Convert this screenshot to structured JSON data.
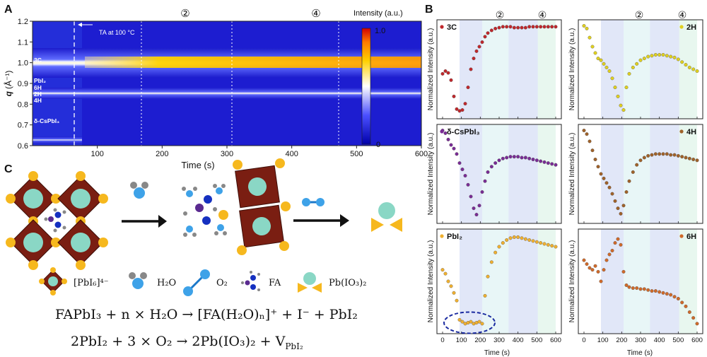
{
  "panels": {
    "a": "A",
    "b": "B",
    "c": "C"
  },
  "panel_a": {
    "ylabel_q": "q",
    "ylabel_unit": "(Å⁻¹)",
    "xlabel": "Time (s)",
    "annotation_ta": "TA at 100 °C",
    "colorbar_title": "Intensity (a.u.)",
    "colorbar_max": "1.0",
    "colorbar_min": "0",
    "stage_markers": [
      "②",
      "④"
    ],
    "phase_labels": [
      "3C",
      "PbI₂",
      "6H",
      "2H",
      "4H",
      "δ-CsPbI₃"
    ]
  },
  "panel_b": {
    "ylabel": "Normalized Intensity (a.u.)",
    "xlabel": "Time (s)",
    "stage_markers": [
      "②",
      "④"
    ]
  },
  "panel_c": {
    "legend": {
      "octahedron": "[PbI₆]⁴⁻",
      "water": "H₂O",
      "oxygen": "O₂",
      "fa": "FA",
      "product": "Pb(IO₃)₂"
    },
    "equation1": "FAPbI₃ + n × H₂O → [FA(H₂O)ₙ]⁺ + I⁻ + PbI₂",
    "equation2": "2PbI₂ + 3 × O₂ → 2Pb(IO₃)₂ + V",
    "equation2_sub": "PbI₂"
  },
  "chart_data": [
    {
      "type": "heatmap",
      "panel": "A",
      "xlabel": "Time (s)",
      "ylabel": "q (Å⁻¹)",
      "xlim": [
        0,
        600
      ],
      "ylim": [
        0.6,
        1.2
      ],
      "xticks": [
        100,
        200,
        300,
        400,
        500,
        600
      ],
      "yticks": [
        0.6,
        0.7,
        0.8,
        0.9,
        1.0,
        1.1,
        1.2
      ],
      "colorbar": {
        "title": "Intensity (a.u.)",
        "min": 0,
        "max": 1.0
      },
      "stage_boundaries_s": [
        90,
        210,
        350,
        505
      ],
      "bands": [
        {
          "label": "3C",
          "q": 1.0,
          "start_s": 0,
          "end_s": 600
        },
        {
          "label": "6H",
          "q": 0.84,
          "start_s": 0,
          "end_s": 600
        },
        {
          "label": "δ-CsPbI₃",
          "q": 0.62,
          "start_s": 0,
          "end_s": 90
        }
      ]
    },
    {
      "type": "scatter",
      "panel": "B",
      "xlabel": "Time (s)",
      "ylabel": "Normalized Intensity (a.u.)",
      "xlim": [
        0,
        600
      ],
      "xticks": [
        0,
        100,
        200,
        300,
        400,
        500,
        600
      ],
      "stage_shading_s": [
        [
          90,
          210
        ],
        [
          210,
          350
        ],
        [
          350,
          505
        ],
        [
          505,
          600
        ]
      ],
      "series": [
        {
          "name": "3C",
          "color": "#c0282c",
          "x": [
            0,
            15,
            30,
            45,
            60,
            75,
            90,
            105,
            120,
            135,
            150,
            165,
            180,
            195,
            210,
            225,
            240,
            260,
            280,
            300,
            320,
            340,
            360,
            380,
            400,
            420,
            440,
            460,
            480,
            500,
            520,
            540,
            560,
            580,
            600
          ],
          "y": [
            0.45,
            0.48,
            0.46,
            0.38,
            0.2,
            0.06,
            0.04,
            0.05,
            0.12,
            0.3,
            0.5,
            0.62,
            0.7,
            0.75,
            0.8,
            0.86,
            0.9,
            0.93,
            0.95,
            0.96,
            0.97,
            0.97,
            0.97,
            0.96,
            0.96,
            0.96,
            0.96,
            0.97,
            0.97,
            0.97,
            0.97,
            0.97,
            0.97,
            0.97,
            0.97
          ]
        },
        {
          "name": "2H",
          "color": "#e0d020",
          "x": [
            0,
            15,
            30,
            45,
            60,
            75,
            90,
            105,
            120,
            135,
            150,
            165,
            180,
            195,
            210,
            225,
            240,
            260,
            280,
            300,
            320,
            340,
            360,
            380,
            400,
            420,
            440,
            460,
            480,
            500,
            520,
            540,
            560,
            580,
            600
          ],
          "y": [
            0.98,
            0.95,
            0.85,
            0.75,
            0.68,
            0.62,
            0.6,
            0.56,
            0.52,
            0.48,
            0.4,
            0.3,
            0.2,
            0.1,
            0.05,
            0.3,
            0.45,
            0.52,
            0.56,
            0.6,
            0.62,
            0.64,
            0.65,
            0.66,
            0.66,
            0.66,
            0.65,
            0.64,
            0.63,
            0.61,
            0.58,
            0.55,
            0.52,
            0.5,
            0.48
          ]
        },
        {
          "name": "δ-CsPbI₃",
          "color": "#7a2c95",
          "x": [
            0,
            15,
            30,
            45,
            60,
            75,
            90,
            105,
            120,
            135,
            150,
            165,
            180,
            195,
            210,
            225,
            240,
            260,
            280,
            300,
            320,
            340,
            360,
            380,
            400,
            420,
            440,
            460,
            480,
            500,
            520,
            540,
            560,
            580,
            600
          ],
          "y": [
            0.98,
            0.95,
            0.88,
            0.82,
            0.78,
            0.72,
            0.62,
            0.55,
            0.48,
            0.38,
            0.25,
            0.12,
            0.05,
            0.15,
            0.3,
            0.42,
            0.52,
            0.58,
            0.62,
            0.65,
            0.67,
            0.68,
            0.69,
            0.69,
            0.69,
            0.68,
            0.68,
            0.67,
            0.66,
            0.65,
            0.64,
            0.63,
            0.62,
            0.61,
            0.6
          ]
        },
        {
          "name": "4H",
          "color": "#a0622a",
          "x": [
            0,
            15,
            30,
            45,
            60,
            75,
            90,
            105,
            120,
            135,
            150,
            165,
            180,
            195,
            210,
            225,
            240,
            260,
            280,
            300,
            320,
            340,
            360,
            380,
            400,
            420,
            440,
            460,
            480,
            500,
            520,
            540,
            560,
            580,
            600
          ],
          "y": [
            0.98,
            0.94,
            0.86,
            0.76,
            0.66,
            0.58,
            0.5,
            0.45,
            0.4,
            0.35,
            0.28,
            0.2,
            0.12,
            0.06,
            0.15,
            0.3,
            0.42,
            0.52,
            0.6,
            0.65,
            0.68,
            0.7,
            0.71,
            0.72,
            0.72,
            0.72,
            0.72,
            0.71,
            0.71,
            0.7,
            0.69,
            0.68,
            0.67,
            0.66,
            0.65
          ]
        },
        {
          "name": "PbI₂",
          "color": "#f0b030",
          "x": [
            0,
            15,
            30,
            45,
            60,
            75,
            90,
            105,
            120,
            135,
            150,
            165,
            180,
            195,
            210,
            225,
            240,
            260,
            280,
            300,
            320,
            340,
            360,
            380,
            400,
            420,
            440,
            460,
            480,
            500,
            520,
            540,
            560,
            580,
            600
          ],
          "y": [
            0.62,
            0.58,
            0.5,
            0.45,
            0.38,
            0.3,
            0.1,
            0.08,
            0.06,
            0.07,
            0.08,
            0.06,
            0.07,
            0.08,
            0.06,
            0.35,
            0.55,
            0.7,
            0.8,
            0.86,
            0.9,
            0.93,
            0.95,
            0.96,
            0.96,
            0.95,
            0.94,
            0.93,
            0.92,
            0.91,
            0.9,
            0.89,
            0.88,
            0.87,
            0.86
          ]
        },
        {
          "name": "6H",
          "color": "#d06a2a",
          "x": [
            0,
            15,
            30,
            45,
            60,
            75,
            90,
            105,
            120,
            135,
            150,
            165,
            180,
            195,
            210,
            225,
            240,
            260,
            280,
            300,
            320,
            340,
            360,
            380,
            400,
            420,
            440,
            460,
            480,
            500,
            520,
            540,
            560,
            580,
            600
          ],
          "y": [
            0.72,
            0.68,
            0.64,
            0.62,
            0.66,
            0.6,
            0.5,
            0.62,
            0.72,
            0.78,
            0.82,
            0.9,
            0.94,
            0.88,
            0.6,
            0.46,
            0.44,
            0.43,
            0.43,
            0.42,
            0.42,
            0.41,
            0.4,
            0.4,
            0.39,
            0.38,
            0.37,
            0.36,
            0.34,
            0.32,
            0.28,
            0.24,
            0.18,
            0.12,
            0.06
          ]
        }
      ]
    }
  ]
}
